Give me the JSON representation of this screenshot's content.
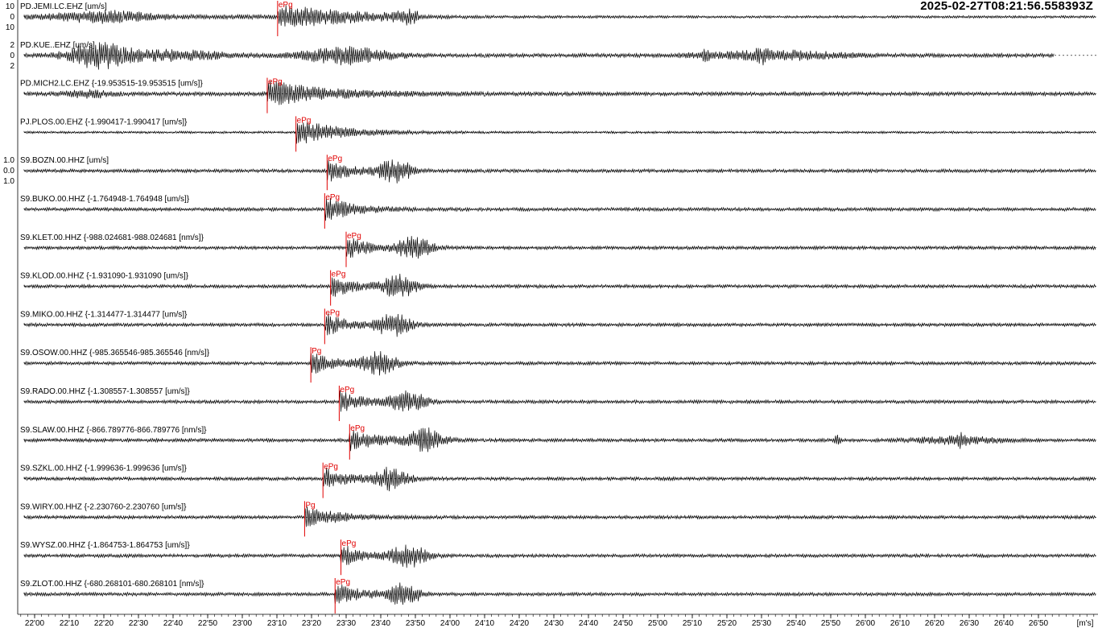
{
  "timestamp": "2025-02-27T08:21:56.558393Z",
  "axis": {
    "x_ticks": [
      "22'00",
      "22'10",
      "22'20",
      "22'30",
      "22'40",
      "22'50",
      "23'00",
      "23'10",
      "23'20",
      "23'30",
      "23'40",
      "23'50",
      "24'00",
      "24'10",
      "24'20",
      "24'30",
      "24'40",
      "24'50",
      "25'00",
      "25'10",
      "25'20",
      "25'30",
      "25'40",
      "25'50",
      "26'00",
      "26'10",
      "26'20",
      "26'30",
      "26'40",
      "26'50"
    ],
    "x_start_seconds": 1320,
    "x_tick_step_seconds": 10,
    "unit_label": "[m's]"
  },
  "traces": [
    {
      "label": "PD.JEMI.LC.EHZ [um/s]",
      "pick": "ePg",
      "pick_time": "23'10.2",
      "y_ticks": [
        "10",
        "0",
        "10"
      ],
      "envelope": "strong_pre"
    },
    {
      "label": "PD.KUE..EHZ [um/s]",
      "pick": "",
      "pick_time": "",
      "y_ticks": [
        "2",
        "0",
        "2"
      ],
      "envelope": "kue"
    },
    {
      "label": "PD.MICH2.LC.EHZ {-19.953515-19.953515 [um/s]}",
      "pick": "ePg",
      "pick_time": "23'07.2",
      "y_ticks": [],
      "envelope": "mich"
    },
    {
      "label": "PJ.PLOS.00.EHZ {-1.990417-1.990417 [um/s]}",
      "pick": "ePg",
      "pick_time": "23'15.5",
      "y_ticks": [],
      "envelope": "plos"
    },
    {
      "label": "S9.BOZN.00.HHZ [um/s]",
      "pick": "ePg",
      "pick_time": "23'24.5",
      "y_ticks": [
        "1.0",
        "0.0",
        "1.0"
      ],
      "envelope": "two_burst"
    },
    {
      "label": "S9.BUKO.00.HHZ {-1.764948-1.764948 [um/s]}",
      "pick": "ePg",
      "pick_time": "23'23.8",
      "y_ticks": [],
      "envelope": "single"
    },
    {
      "label": "S9.KLET.00.HHZ {-988.024681-988.024681 [nm/s]}",
      "pick": "ePg",
      "pick_time": "23'30.0",
      "y_ticks": [],
      "envelope": "two_burst"
    },
    {
      "label": "S9.KLOD.00.HHZ {-1.931090-1.931090 [um/s]}",
      "pick": "ePg",
      "pick_time": "23'25.5",
      "y_ticks": [],
      "envelope": "two_burst"
    },
    {
      "label": "S9.MIKO.00.HHZ {-1.314477-1.314477 [um/s]}",
      "pick": "ePg",
      "pick_time": "23'23.8",
      "y_ticks": [],
      "envelope": "two_burst"
    },
    {
      "label": "S9.OSOW.00.HHZ {-985.365546-985.365546 [nm/s]}",
      "pick": "Pg",
      "pick_time": "23'19.8",
      "y_ticks": [],
      "envelope": "two_burst"
    },
    {
      "label": "S9.RADO.00.HHZ {-1.308557-1.308557 [um/s]}",
      "pick": "ePg",
      "pick_time": "23'28.0",
      "y_ticks": [],
      "envelope": "two_burst"
    },
    {
      "label": "S9.SLAW.00.HHZ {-866.789776-866.789776 [nm/s]}",
      "pick": "ePg",
      "pick_time": "23'31.0",
      "y_ticks": [],
      "envelope": "slaw"
    },
    {
      "label": "S9.SZKL.00.HHZ {-1.999636-1.999636 [um/s]}",
      "pick": "ePg",
      "pick_time": "23'23.3",
      "y_ticks": [],
      "envelope": "two_burst"
    },
    {
      "label": "S9.WIRY.00.HHZ {-2.230760-2.230760 [um/s]}",
      "pick": "Pg",
      "pick_time": "23'18.0",
      "y_ticks": [],
      "envelope": "single"
    },
    {
      "label": "S9.WYSZ.00.HHZ {-1.864753-1.864753 [um/s]}",
      "pick": "ePg",
      "pick_time": "23'28.5",
      "y_ticks": [],
      "envelope": "two_burst"
    },
    {
      "label": "S9.ZLOT.00.HHZ {-680.268101-680.268101 [nm/s]}",
      "pick": "ePg",
      "pick_time": "23'26.8",
      "y_ticks": [],
      "envelope": "two_burst"
    }
  ],
  "colors": {
    "trace": "#000000",
    "pick": "#e00000",
    "axis": "#000000",
    "background": "#ffffff"
  }
}
